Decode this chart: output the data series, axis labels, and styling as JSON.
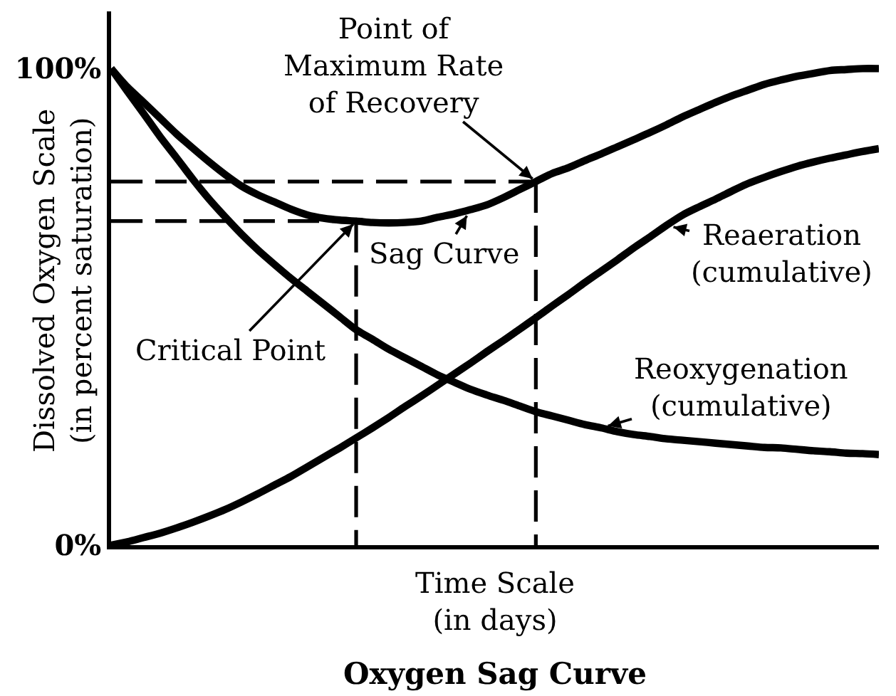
{
  "chart_data": {
    "type": "line",
    "title": "Oxygen Sag Curve",
    "xlabel": "Time Scale\n(in days)",
    "ylabel": "Dissolved Oxygen Scale\n(in percent saturation)",
    "categories": [
      null,
      null,
      null,
      null,
      null,
      null,
      null,
      null,
      null,
      null,
      null,
      null,
      null,
      null,
      null,
      null,
      null,
      null,
      null,
      null,
      null,
      null,
      null,
      null,
      null,
      null,
      null,
      null,
      null,
      null,
      null,
      null,
      null,
      null,
      null,
      null,
      null,
      null,
      null,
      null,
      null,
      null,
      null,
      null,
      null,
      null,
      null,
      null
    ],
    "series": [
      {
        "name": "Sag Curve",
        "color": "#000000",
        "values": [
          100,
          96.1,
          92.9,
          89.6,
          86.3,
          83.3,
          80.4,
          77.7,
          75.3,
          73.5,
          72.0,
          70.5,
          69.3,
          68.6,
          68.2,
          68.0,
          67.7,
          67.6,
          67.7,
          68.0,
          68.8,
          69.5,
          70.4,
          71.4,
          72.9,
          74.6,
          76.3,
          78.0,
          79.2,
          80.7,
          82.1,
          83.6,
          85.1,
          86.6,
          88.2,
          89.9,
          91.4,
          92.9,
          94.3,
          95.5,
          96.7,
          97.6,
          98.4,
          99.0,
          99.6,
          99.8,
          100,
          100
        ]
      },
      {
        "name": "Reaeration\n(cumulative)",
        "color": "#000000",
        "values": [
          0,
          0.7,
          1.6,
          2.5,
          3.6,
          4.8,
          6.1,
          7.5,
          9.1,
          10.8,
          12.6,
          14.4,
          16.4,
          18.4,
          20.4,
          22.5,
          24.6,
          26.8,
          29.1,
          31.3,
          33.6,
          35.9,
          38.2,
          40.6,
          42.9,
          45.3,
          47.7,
          50.2,
          52.6,
          55.1,
          57.5,
          59.9,
          62.4,
          64.7,
          67.1,
          69.3,
          71.0,
          72.6,
          74.3,
          75.9,
          77.2,
          78.4,
          79.5,
          80.4,
          81.2,
          81.9,
          82.6,
          83.2
        ]
      },
      {
        "name": "Reoxygenation\n(cumulative)",
        "color": "#000000",
        "values": [
          100,
          95.2,
          90.5,
          85.7,
          81.3,
          76.8,
          72.6,
          68.8,
          65.2,
          61.9,
          58.9,
          56.0,
          53.3,
          50.6,
          47.9,
          45.2,
          43.2,
          41.1,
          39.3,
          37.5,
          35.7,
          34.2,
          32.7,
          31.5,
          30.4,
          29.2,
          28.0,
          27.1,
          26.2,
          25.3,
          24.6,
          23.8,
          23.2,
          22.8,
          22.3,
          22.0,
          21.7,
          21.4,
          21.1,
          20.8,
          20.5,
          20.4,
          20.1,
          19.8,
          19.6,
          19.3,
          19.2,
          19.0
        ]
      },
      {
        "color": "#000000",
        "line_style": "dashed",
        "values": [
          76.3,
          76.3,
          76.3,
          76.3,
          76.3,
          76.3,
          76.3,
          76.3,
          76.3,
          76.3,
          76.3,
          76.3,
          76.3,
          76.3,
          76.3,
          76.3,
          76.3,
          76.3,
          76.3,
          76.3,
          76.3,
          76.3,
          76.3,
          76.3,
          76.3,
          76.3,
          76.3,
          null,
          null,
          null,
          null,
          null,
          null,
          null,
          null,
          null,
          null,
          null,
          null,
          null,
          null,
          null,
          null,
          null,
          null,
          null,
          null,
          null
        ],
        "errors": [
          null,
          null,
          null,
          null,
          null,
          null,
          null,
          null,
          null,
          null,
          null,
          null,
          null,
          null,
          null,
          null,
          null,
          null,
          null,
          null,
          null,
          null,
          null,
          null,
          null,
          null,
          [
            0,
            76.3
          ],
          null,
          null,
          null,
          null,
          null,
          null,
          null,
          null,
          null,
          null,
          null,
          null,
          null,
          null,
          null,
          null,
          null,
          null,
          null,
          null,
          null
        ]
      },
      {
        "color": "#000000",
        "line_style": "dashed",
        "values": [
          68.0,
          68.0,
          68.0,
          68.0,
          68.0,
          68.0,
          68.0,
          68.0,
          68.0,
          68.0,
          68.0,
          68.0,
          68.0,
          68.0,
          68.0,
          68.0,
          null,
          null,
          null,
          null,
          null,
          null,
          null,
          null,
          null,
          null,
          null,
          null,
          null,
          null,
          null,
          null,
          null,
          null,
          null,
          null,
          null,
          null,
          null,
          null,
          null,
          null,
          null,
          null,
          null,
          null,
          null,
          null
        ],
        "errors": [
          null,
          null,
          null,
          null,
          null,
          null,
          null,
          null,
          null,
          null,
          null,
          null,
          null,
          null,
          null,
          [
            0,
            68.0
          ],
          null,
          null,
          null,
          null,
          null,
          null,
          null,
          null,
          null,
          null,
          null,
          null,
          null,
          null,
          null,
          null,
          null,
          null,
          null,
          null,
          null,
          null,
          null,
          null,
          null,
          null,
          null,
          null,
          null,
          null,
          null,
          null
        ]
      }
    ],
    "annotations": [
      "Point of\nMaximum Rate\nof Recovery",
      "Critical Point"
    ],
    "ylim": [
      0,
      112
    ],
    "yticks": [
      {
        "value": 0,
        "label": "0%"
      },
      {
        "value": 100,
        "label": "100%"
      }
    ],
    "tick_labels": "y"
  }
}
